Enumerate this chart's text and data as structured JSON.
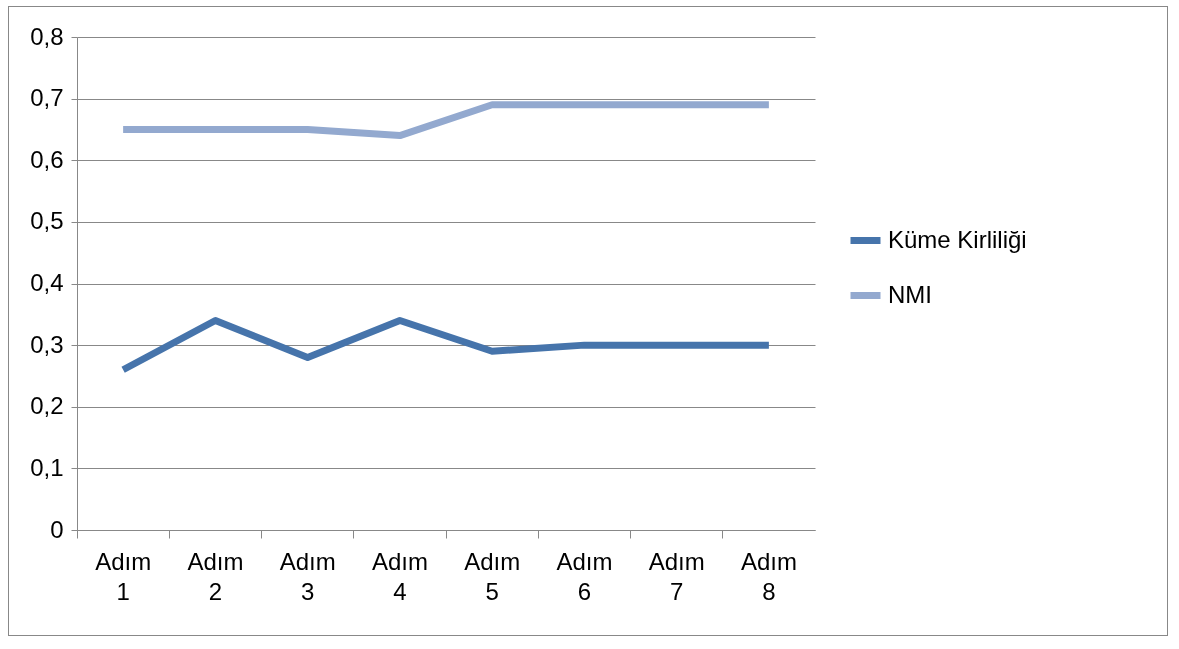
{
  "chart_data": {
    "type": "line",
    "categories": [
      "Adım 1",
      "Adım 2",
      "Adım 3",
      "Adım 4",
      "Adım 5",
      "Adım 6",
      "Adım 7",
      "Adım 8"
    ],
    "series": [
      {
        "name": "Küme Kirliliği",
        "color": "#4674ab",
        "values": [
          0.26,
          0.34,
          0.28,
          0.34,
          0.29,
          0.3,
          0.3,
          0.3
        ]
      },
      {
        "name": "NMI",
        "color": "#93a9cf",
        "values": [
          0.65,
          0.65,
          0.65,
          0.64,
          0.69,
          0.69,
          0.69,
          0.69
        ]
      }
    ],
    "ylim": [
      0,
      0.8
    ],
    "yticks": [
      0,
      {
        "value": 0.1,
        "label": "0,1"
      },
      {
        "value": 0.2,
        "label": "0,2"
      },
      {
        "value": 0.3,
        "label": "0,3"
      },
      {
        "value": 0.4,
        "label": "0,4"
      },
      {
        "value": 0.5,
        "label": "0,5"
      },
      {
        "value": 0.6,
        "label": "0,6"
      },
      {
        "value": 0.7,
        "label": "0,7"
      },
      {
        "value": 0.8,
        "label": "0,8"
      }
    ],
    "grid": "y",
    "legend": "right",
    "marker": "none",
    "line_style": "solid"
  }
}
